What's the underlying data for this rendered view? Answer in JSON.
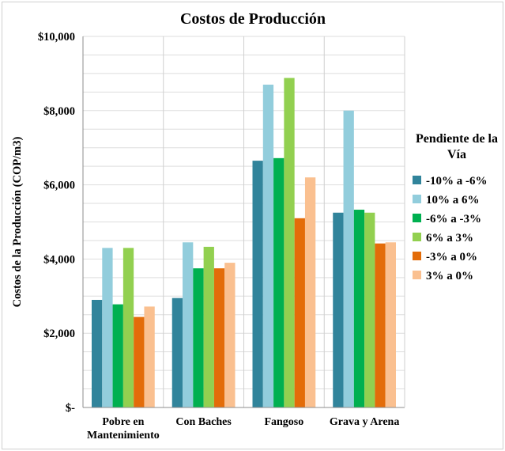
{
  "chart_data": {
    "type": "bar",
    "title": "Costos de Producción",
    "ylabel": "Costos de la Producción (COP/m3)",
    "xlabel": "",
    "ylim": [
      0,
      10000
    ],
    "yticks": [
      0,
      2000,
      4000,
      6000,
      8000,
      10000
    ],
    "ytick_labels": [
      "$-",
      "$2,000",
      "$4,000",
      "$6,000",
      "$8,000",
      "$10,000"
    ],
    "grid": true,
    "legend_position": "right",
    "categories": [
      [
        "Pobre en",
        "Mantenimiento"
      ],
      [
        "Con Baches"
      ],
      [
        "Fangoso"
      ],
      [
        "Grava y Arena"
      ]
    ],
    "legend_title": [
      "Pendiente de la",
      "Vía"
    ],
    "series": [
      {
        "name": "-10% a -6%",
        "color": "#31849B",
        "values": [
          2900,
          2950,
          6650,
          5250
        ]
      },
      {
        "name": "10% a 6%",
        "color": "#92CDDC",
        "values": [
          4300,
          4450,
          8700,
          8000
        ]
      },
      {
        "name": "-6% a -3%",
        "color": "#00B050",
        "values": [
          2780,
          3750,
          6720,
          5330
        ]
      },
      {
        "name": "6% a 3%",
        "color": "#92D050",
        "values": [
          4300,
          4330,
          8880,
          5250
        ]
      },
      {
        "name": "-3% a 0%",
        "color": "#E36C09",
        "values": [
          2440,
          3750,
          5100,
          4420
        ]
      },
      {
        "name": "3% a 0%",
        "color": "#FAC090",
        "values": [
          2720,
          3900,
          6200,
          4450
        ]
      }
    ]
  }
}
